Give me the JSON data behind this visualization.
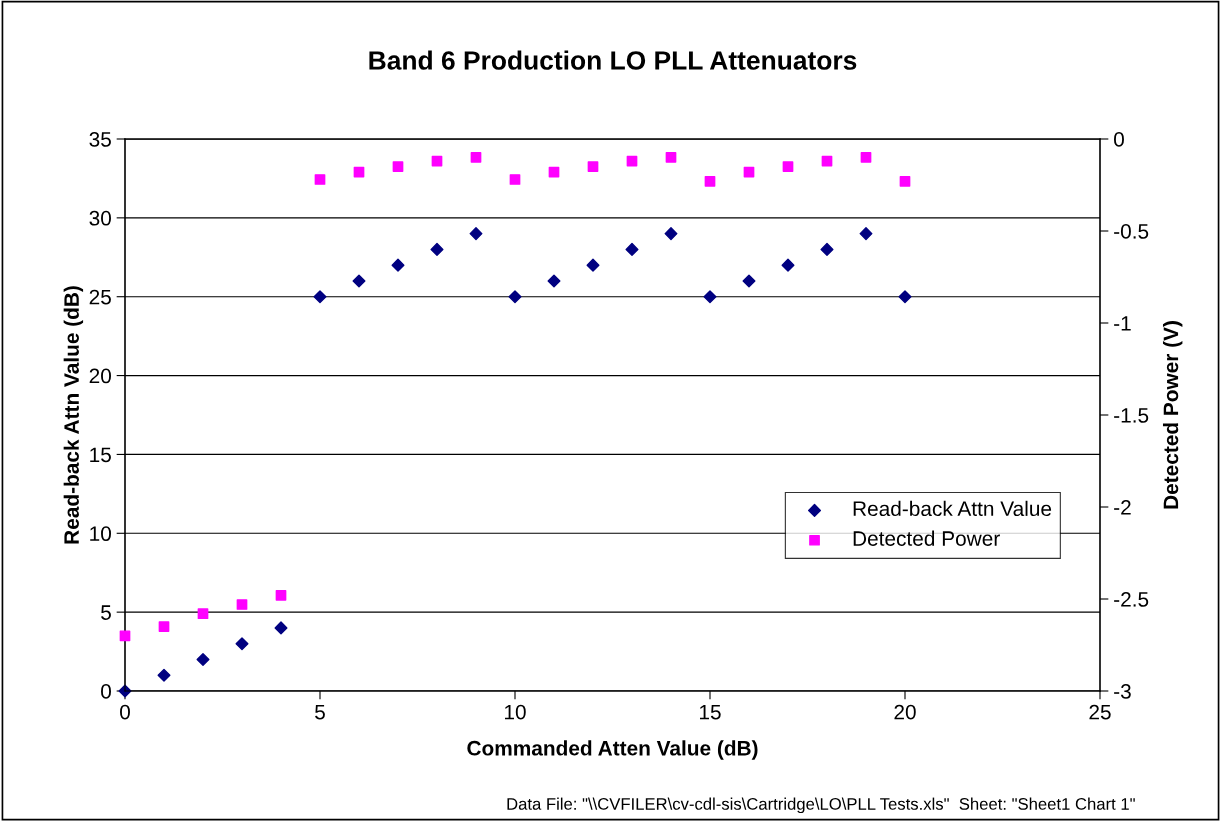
{
  "chart_data": {
    "type": "scatter",
    "title": "Band 6 Production LO PLL Attenuators",
    "xlabel": "Commanded Atten Value (dB)",
    "ylabel": "Read-back Attn Value (dB)",
    "y2label": "Detected Power (V)",
    "x": [
      0,
      1,
      2,
      3,
      4,
      5,
      6,
      7,
      8,
      9,
      10,
      11,
      12,
      13,
      14,
      15,
      16,
      17,
      18,
      19,
      20
    ],
    "series": [
      {
        "name": "Read-back Attn Value",
        "color": "#000080",
        "marker": "diamond",
        "values": [
          0,
          1,
          2,
          3,
          4,
          25,
          26,
          27,
          28,
          29,
          25,
          26,
          27,
          28,
          29,
          25,
          26,
          27,
          28,
          29,
          25
        ]
      },
      {
        "name": "Detected Power",
        "color": "#ff00ff",
        "marker": "square",
        "axis": "y2",
        "values": [
          -2.7,
          -2.65,
          -2.58,
          -2.53,
          -2.48,
          -0.22,
          -0.18,
          -0.15,
          -0.12,
          -0.1,
          -0.22,
          -0.18,
          -0.15,
          -0.12,
          -0.1,
          -0.23,
          -0.18,
          -0.15,
          -0.12,
          -0.1,
          -0.23
        ]
      }
    ],
    "xlim": [
      0,
      25
    ],
    "xticks": [
      0,
      5,
      10,
      15,
      20,
      25
    ],
    "ylim": [
      0,
      35
    ],
    "yticks": [
      0,
      5,
      10,
      15,
      20,
      25,
      30,
      35
    ],
    "y2lim": [
      -3,
      0
    ],
    "y2ticks": [
      -3,
      -2.5,
      -2,
      -1.5,
      -1,
      -0.5,
      0
    ],
    "grid": "y",
    "legend": "right",
    "annotations": [
      "Data File: \"\\\\CVFILER\\cv-cdl-sis\\Cartridge\\LO\\PLL Tests.xls\"  Sheet: \"Sheet1 Chart 1\""
    ]
  }
}
